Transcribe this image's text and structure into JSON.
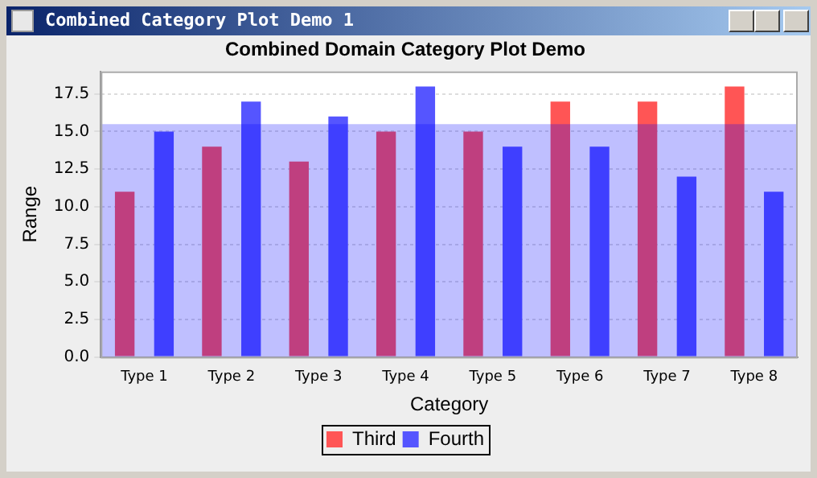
{
  "chart_data": {
    "type": "bar",
    "title": "Combined Domain Category Plot Demo",
    "xlabel": "Category",
    "ylabel": "Range",
    "annotations": [
      "Combined Category Plot Demo 1"
    ],
    "categories": [
      "Type 1",
      "Type 2",
      "Type 3",
      "Type 4",
      "Type 5",
      "Type 6",
      "Type 7",
      "Type 8"
    ],
    "series": [
      {
        "name": "Third",
        "color": "#ff5555",
        "values": [
          11,
          14,
          13,
          15,
          15,
          17,
          17,
          18
        ]
      },
      {
        "name": "Fourth",
        "color": "#5555ff",
        "values": [
          15,
          17,
          16,
          18,
          14,
          14,
          12,
          11
        ]
      }
    ],
    "ylim": [
      0,
      19
    ],
    "yticks": [
      {
        "value": 0,
        "label": "0.0"
      },
      {
        "value": 2.5,
        "label": "2.5"
      },
      {
        "value": 5,
        "label": "5.0"
      },
      {
        "value": 7.5,
        "label": "7.5"
      },
      {
        "value": 10,
        "label": "10.0"
      },
      {
        "value": 12.5,
        "label": "12.5"
      },
      {
        "value": 15,
        "label": "15.0"
      },
      {
        "value": 17.5,
        "label": "17.5"
      }
    ],
    "bands": [
      {
        "axis": "y",
        "from": 0,
        "to": 15.5,
        "color": "#0000ff"
      }
    ],
    "grid": "y",
    "legend": "bottom"
  }
}
